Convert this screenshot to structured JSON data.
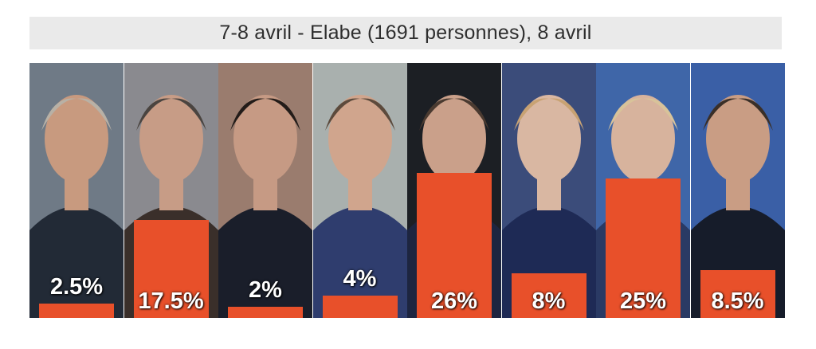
{
  "title": "7-8 avril - Elabe (1691 personnes), 8 avril",
  "chart_data": {
    "type": "bar",
    "values": [
      2.5,
      17.5,
      2,
      4,
      26,
      8,
      25,
      8.5
    ],
    "labels": [
      "2.5%",
      "17.5%",
      "2%",
      "4%",
      "26%",
      "8%",
      "25%",
      "8.5%"
    ],
    "ylim": [
      0,
      30
    ],
    "bar_color": "#e8502a"
  }
}
